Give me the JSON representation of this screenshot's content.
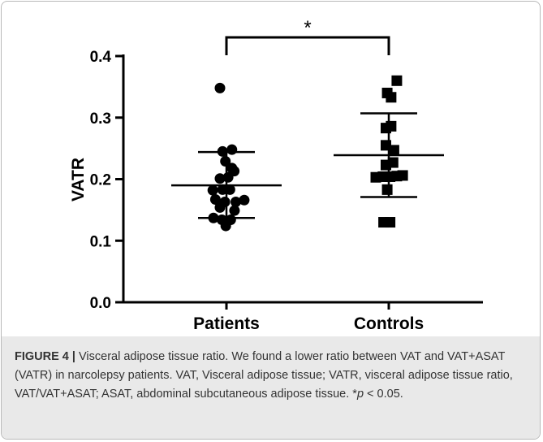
{
  "chart_data": {
    "type": "scatter",
    "ylabel": "VATR",
    "ylim": [
      0.0,
      0.4
    ],
    "yticks": [
      "0.0",
      "0.1",
      "0.2",
      "0.3",
      "0.4"
    ],
    "categories": [
      "Patients",
      "Controls"
    ],
    "grid": false,
    "legend": "none",
    "series": [
      {
        "category": "Patients",
        "marker": "circle",
        "mean": 0.19,
        "sd_upper": 0.244,
        "sd_lower": 0.137,
        "points": [
          {
            "offset": -0.5,
            "y": 0.348
          },
          {
            "offset": -0.3,
            "y": 0.245
          },
          {
            "offset": 0.42,
            "y": 0.248
          },
          {
            "offset": -0.08,
            "y": 0.229
          },
          {
            "offset": 0.42,
            "y": 0.218
          },
          {
            "offset": 0.6,
            "y": 0.213
          },
          {
            "offset": -0.5,
            "y": 0.201
          },
          {
            "offset": 0.13,
            "y": 0.203
          },
          {
            "offset": -1.05,
            "y": 0.182
          },
          {
            "offset": -0.3,
            "y": 0.183
          },
          {
            "offset": 0.27,
            "y": 0.183
          },
          {
            "offset": -0.85,
            "y": 0.167
          },
          {
            "offset": -0.12,
            "y": 0.163
          },
          {
            "offset": 0.72,
            "y": 0.163
          },
          {
            "offset": 1.37,
            "y": 0.166
          },
          {
            "offset": -0.5,
            "y": 0.154
          },
          {
            "offset": 0.62,
            "y": 0.149
          },
          {
            "offset": -1.0,
            "y": 0.137
          },
          {
            "offset": -0.35,
            "y": 0.134
          },
          {
            "offset": 0.33,
            "y": 0.134
          },
          {
            "offset": -0.05,
            "y": 0.124
          }
        ]
      },
      {
        "category": "Controls",
        "marker": "square",
        "mean": 0.239,
        "sd_upper": 0.307,
        "sd_lower": 0.171,
        "points": [
          {
            "offset": 0.62,
            "y": 0.36
          },
          {
            "offset": -0.12,
            "y": 0.34
          },
          {
            "offset": 0.18,
            "y": 0.333
          },
          {
            "offset": -0.22,
            "y": 0.283
          },
          {
            "offset": 0.18,
            "y": 0.286
          },
          {
            "offset": -0.22,
            "y": 0.255
          },
          {
            "offset": 0.4,
            "y": 0.247
          },
          {
            "offset": -0.22,
            "y": 0.223
          },
          {
            "offset": 0.33,
            "y": 0.227
          },
          {
            "offset": -1.0,
            "y": 0.203
          },
          {
            "offset": -0.45,
            "y": 0.204
          },
          {
            "offset": 0.1,
            "y": 0.204
          },
          {
            "offset": 0.62,
            "y": 0.205
          },
          {
            "offset": 1.07,
            "y": 0.206
          },
          {
            "offset": -0.12,
            "y": 0.183
          },
          {
            "offset": -0.4,
            "y": 0.13
          },
          {
            "offset": 0.1,
            "y": 0.13
          }
        ]
      }
    ],
    "significance": {
      "label": "*",
      "between": [
        "Patients",
        "Controls"
      ]
    }
  },
  "caption": {
    "label": "FIGURE 4 |",
    "text": " Visceral adipose tissue ratio. We found a lower ratio between VAT and VAT+ASAT (VATR) in narcolepsy patients. VAT, Visceral adipose tissue; VATR, visceral adipose tissue ratio, VAT/VAT+ASAT; ASAT, abdominal subcutaneous adipose tissue. *",
    "p_symbol": "p",
    "p_value": " < 0.05."
  }
}
